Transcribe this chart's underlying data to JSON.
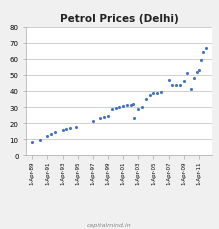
{
  "title": "Petrol Prices (Delhi)",
  "watermark": "capitalmind.in",
  "background_color": "#f0f0f0",
  "plot_bg_color": "#ffffff",
  "grid_color": "#c8c8c8",
  "dot_color": "#4472c4",
  "ylim": [
    0,
    80
  ],
  "yticks": [
    0,
    10,
    20,
    30,
    40,
    50,
    60,
    70,
    80
  ],
  "x_labels": [
    "1-Apr-89",
    "1-Apr-91",
    "1-Apr-93",
    "1-Apr-95",
    "1-Apr-97",
    "1-Apr-99",
    "1-Apr-01",
    "1-Apr-03",
    "1-Apr-05",
    "1-Apr-07",
    "1-Apr-09",
    "1-Apr-11"
  ],
  "x_tick_years": [
    1989,
    1991,
    1993,
    1995,
    1997,
    1999,
    2001,
    2003,
    2005,
    2007,
    2009,
    2011
  ],
  "xlim": [
    1988.2,
    2012.8
  ],
  "data": [
    [
      1989,
      8.5
    ],
    [
      1990,
      9.5
    ],
    [
      1991,
      12.0
    ],
    [
      1991.5,
      13.0
    ],
    [
      1992,
      14.5
    ],
    [
      1993,
      15.5
    ],
    [
      1993.5,
      16.5
    ],
    [
      1994,
      17.0
    ],
    [
      1994.8,
      17.5
    ],
    [
      1997,
      21.5
    ],
    [
      1998,
      23.0
    ],
    [
      1998.5,
      24.0
    ],
    [
      1999,
      24.5
    ],
    [
      1999.5,
      29.0
    ],
    [
      2000,
      29.5
    ],
    [
      2000.5,
      30.0
    ],
    [
      2001,
      30.5
    ],
    [
      2001.5,
      31.0
    ],
    [
      2002,
      31.5
    ],
    [
      2002.3,
      32.0
    ],
    [
      2002.5,
      23.0
    ],
    [
      2003,
      29.0
    ],
    [
      2003.5,
      30.0
    ],
    [
      2004,
      35.0
    ],
    [
      2004.5,
      37.5
    ],
    [
      2005,
      38.5
    ],
    [
      2005.5,
      39.0
    ],
    [
      2006,
      39.5
    ],
    [
      2007,
      47.0
    ],
    [
      2007.5,
      44.0
    ],
    [
      2008,
      43.5
    ],
    [
      2008.5,
      44.0
    ],
    [
      2009,
      46.0
    ],
    [
      2009.5,
      51.0
    ],
    [
      2010,
      41.0
    ],
    [
      2010.3,
      48.0
    ],
    [
      2010.7,
      52.0
    ],
    [
      2011,
      53.0
    ],
    [
      2011.3,
      59.0
    ],
    [
      2011.6,
      64.0
    ],
    [
      2011.9,
      67.0
    ]
  ]
}
